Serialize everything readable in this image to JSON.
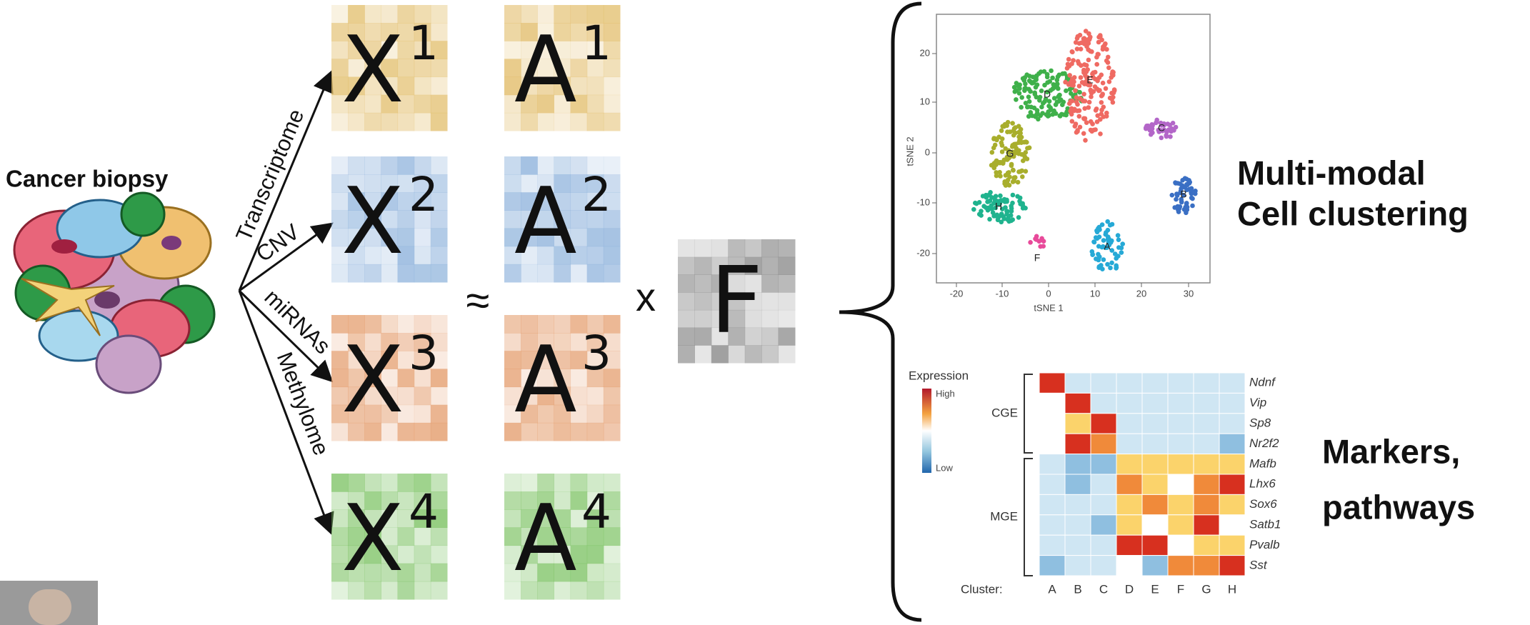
{
  "left": {
    "title": "Cancer biopsy"
  },
  "branches": [
    "Transcriptome",
    "CNV",
    "miRNAs",
    "Methylome"
  ],
  "x_matrices": [
    {
      "base": "X",
      "sup": "1"
    },
    {
      "base": "X",
      "sup": "2"
    },
    {
      "base": "X",
      "sup": "3"
    },
    {
      "base": "X",
      "sup": "4"
    }
  ],
  "a_matrices": [
    {
      "base": "A",
      "sup": "1"
    },
    {
      "base": "A",
      "sup": "2"
    },
    {
      "base": "A",
      "sup": "3"
    },
    {
      "base": "A",
      "sup": "4"
    }
  ],
  "approx": "≈",
  "times": "x",
  "f_matrix": "F",
  "scatter": {
    "x_label": "tSNE 1",
    "y_label": "tSNE 2",
    "xticks": [
      "-20",
      "-10",
      "0",
      "10",
      "20",
      "30"
    ],
    "yticks": [
      "20",
      "10",
      "0",
      "-10",
      "-20"
    ],
    "clusters": [
      "D",
      "E",
      "C",
      "G",
      "H",
      "B",
      "F",
      "A"
    ]
  },
  "clustering_caption": [
    "Multi-modal",
    "Cell clustering"
  ],
  "heatmap": {
    "legend_title": "Expression",
    "legend_high": "High",
    "legend_low": "Low",
    "groups": [
      "CGE",
      "MGE"
    ],
    "genes": [
      "Ndnf",
      "Vip",
      "Sp8",
      "Nr2f2",
      "Mafb",
      "Lhx6",
      "Sox6",
      "Satb1",
      "Pvalb",
      "Sst"
    ],
    "cluster_label": "Cluster:",
    "clusters": [
      "A",
      "B",
      "C",
      "D",
      "E",
      "F",
      "G",
      "H"
    ]
  },
  "markers_caption": [
    "Markers,",
    "pathways"
  ]
}
